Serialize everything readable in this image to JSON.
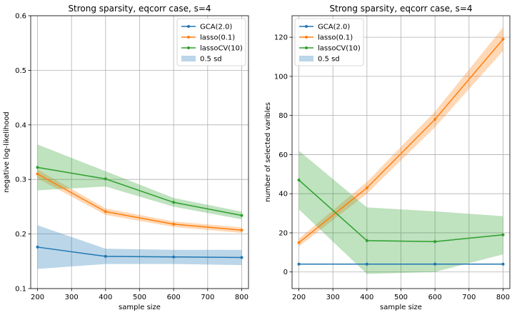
{
  "chart_data": [
    {
      "type": "line",
      "title": "Strong sparsity, eqcorr case, s=4",
      "xlabel": "sample size",
      "ylabel": "negative log-likelihood",
      "x": [
        200,
        400,
        600,
        800
      ],
      "xlim": [
        180,
        820
      ],
      "ylim": [
        0.1,
        0.6
      ],
      "xticks": [
        "200",
        "300",
        "400",
        "500",
        "600",
        "700",
        "800"
      ],
      "yticks": [
        "0.1",
        "0.2",
        "0.3",
        "0.4",
        "0.5",
        "0.6"
      ],
      "grid": true,
      "legend_position": "top-right",
      "series": [
        {
          "name": "GCA(2.0)",
          "color": "#1f77b4",
          "values": [
            0.176,
            0.159,
            0.158,
            0.157
          ],
          "band_low": [
            0.136,
            0.145,
            0.145,
            0.143
          ],
          "band_high": [
            0.216,
            0.173,
            0.171,
            0.171
          ]
        },
        {
          "name": "lasso(0.1)",
          "color": "#ff7f0e",
          "values": [
            0.31,
            0.241,
            0.218,
            0.207
          ],
          "band_low": [
            0.302,
            0.235,
            0.213,
            0.202
          ],
          "band_high": [
            0.318,
            0.247,
            0.223,
            0.212
          ]
        },
        {
          "name": "lassoCV(10)",
          "color": "#2ca02c",
          "values": [
            0.322,
            0.301,
            0.258,
            0.234
          ],
          "band_low": [
            0.28,
            0.287,
            0.25,
            0.227
          ],
          "band_high": [
            0.364,
            0.315,
            0.266,
            0.241
          ]
        }
      ],
      "band_label": "0.5 sd"
    },
    {
      "type": "line",
      "title": "Strong sparsity, eqcorr case, s=4",
      "xlabel": "sample size",
      "ylabel": "number of selected varibles",
      "x": [
        200,
        400,
        600,
        800
      ],
      "xlim": [
        180,
        820
      ],
      "ylim": [
        -8.5,
        131
      ],
      "xticks": [
        "200",
        "300",
        "400",
        "500",
        "600",
        "700",
        "800"
      ],
      "yticks": [
        "0",
        "20",
        "40",
        "60",
        "80",
        "100",
        "120"
      ],
      "grid": true,
      "legend_position": "top-left",
      "series": [
        {
          "name": "GCA(2.0)",
          "color": "#1f77b4",
          "values": [
            4,
            4,
            4,
            4
          ],
          "band_low": [
            4,
            4,
            4,
            4
          ],
          "band_high": [
            4,
            4,
            4,
            4
          ]
        },
        {
          "name": "lasso(0.1)",
          "color": "#ff7f0e",
          "values": [
            15,
            43,
            78,
            119
          ],
          "band_low": [
            13,
            40,
            74,
            113
          ],
          "band_high": [
            17,
            46,
            82,
            125
          ]
        },
        {
          "name": "lassoCV(10)",
          "color": "#2ca02c",
          "values": [
            47,
            16,
            15.5,
            19
          ],
          "band_low": [
            32,
            -1,
            0,
            9
          ],
          "band_high": [
            62,
            33,
            31,
            28.5
          ]
        }
      ],
      "band_label": "0.5 sd"
    }
  ]
}
